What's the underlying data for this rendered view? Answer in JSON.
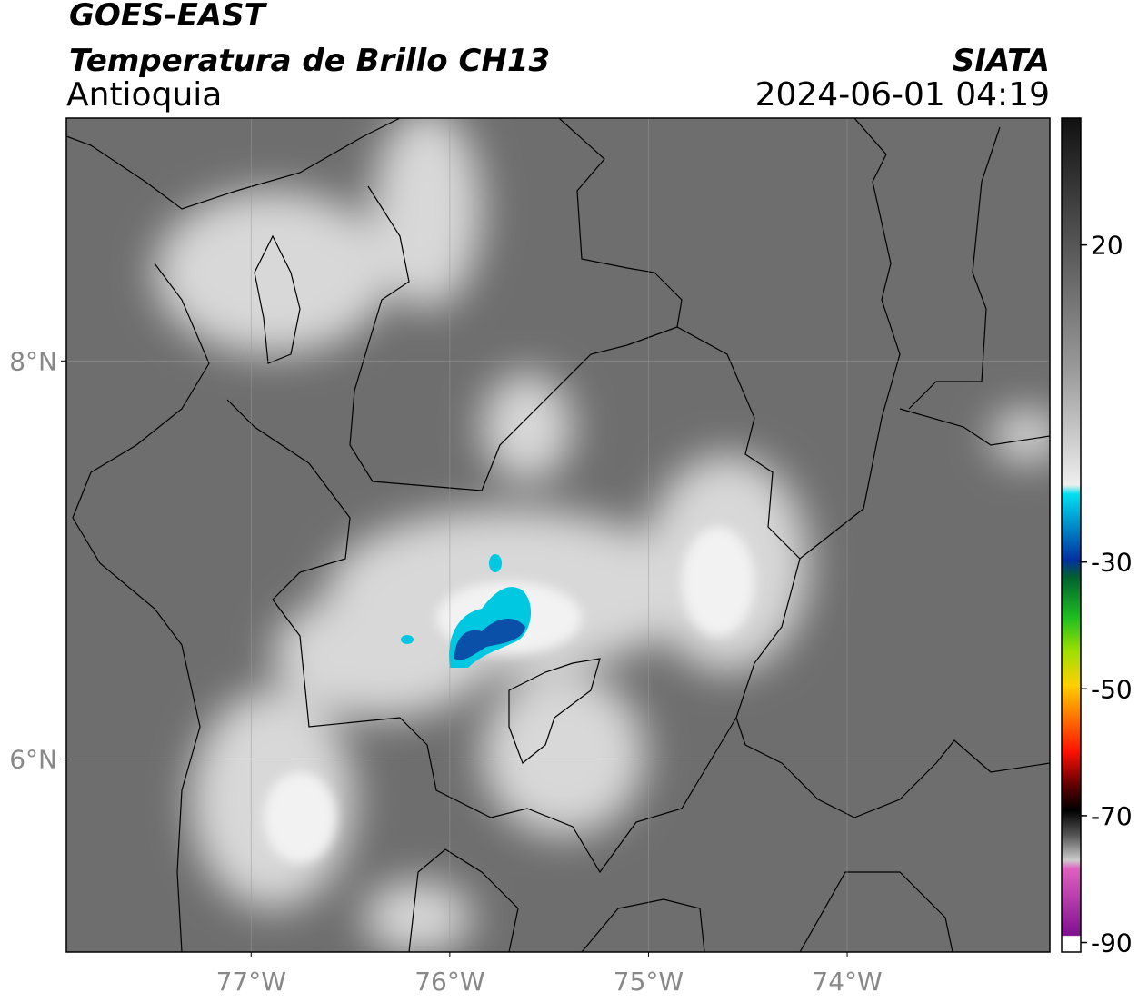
{
  "header": {
    "title": "GOES-EAST",
    "subtitle": "Temperatura de Brillo CH13",
    "region": "Antioquia",
    "source": "SIATA",
    "datetime": "2024-06-01 04:19"
  },
  "map": {
    "xlim": [
      -77.93,
      -72.98
    ],
    "ylim": [
      5.03,
      9.22
    ],
    "xticks": [
      {
        "value": -77,
        "label": "77°W"
      },
      {
        "value": -76,
        "label": "76°W"
      },
      {
        "value": -75,
        "label": "75°W"
      },
      {
        "value": -74,
        "label": "74°W"
      }
    ],
    "yticks": [
      {
        "value": 8,
        "label": "8°N"
      },
      {
        "value": 6,
        "label": "6°N"
      }
    ],
    "grid": true
  },
  "colorbar": {
    "lim": [
      -91.5,
      40
    ],
    "ticks": [
      20,
      -30,
      -50,
      -70,
      -90
    ]
  }
}
